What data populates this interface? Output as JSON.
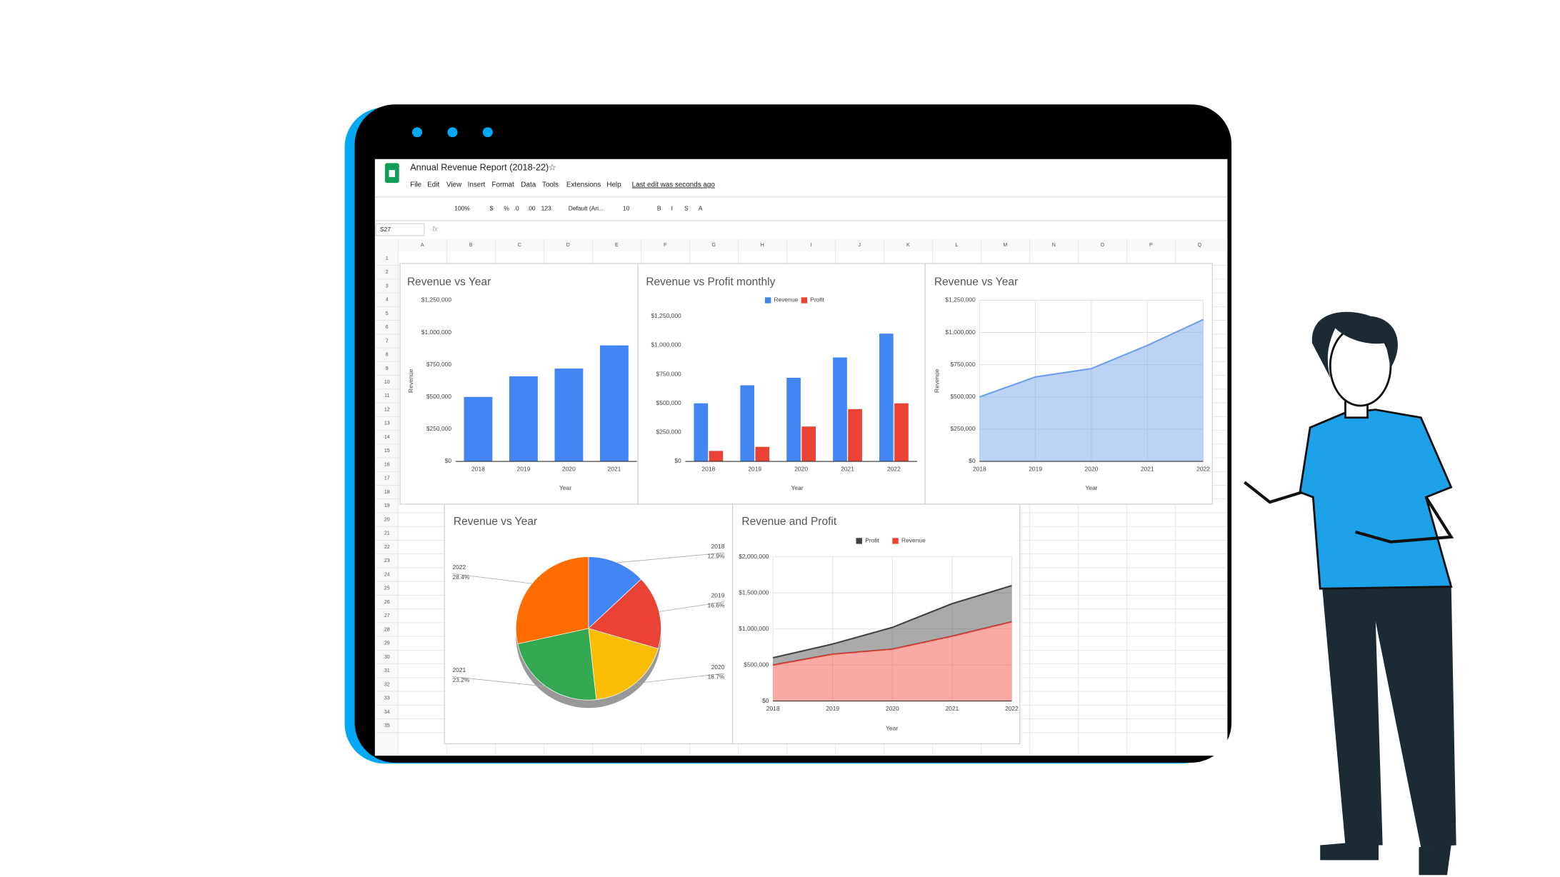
{
  "app": {
    "title": "Annual Revenue Report (2018-22)",
    "menus": [
      "File",
      "Edit",
      "View",
      "Insert",
      "Format",
      "Data",
      "Tools",
      "Extensions",
      "Help"
    ],
    "last_edit": "Last edit was seconds ago",
    "toolbar": [
      "100%",
      "$",
      "%",
      ".0",
      ".00",
      "123",
      "Default (Ari...",
      "10",
      "B",
      "I",
      "S",
      "A"
    ],
    "name_box": "S27",
    "formula_icon": "fx",
    "columns": [
      "A",
      "B",
      "C",
      "D",
      "E",
      "F",
      "G",
      "H",
      "I",
      "J",
      "K",
      "L",
      "M",
      "N",
      "O",
      "P",
      "Q"
    ],
    "rows": [
      1,
      2,
      3,
      4,
      5,
      6,
      7,
      8,
      9,
      10,
      11,
      12,
      13,
      14,
      15,
      16,
      17,
      18,
      19,
      20,
      21,
      22,
      23,
      24,
      25,
      26,
      27,
      28,
      29,
      30,
      31,
      32,
      33,
      34,
      35
    ]
  },
  "chart_data": [
    {
      "type": "bar",
      "title": "Revenue vs Year",
      "categories": [
        "2018",
        "2019",
        "2020",
        "2021"
      ],
      "values": [
        500000,
        660000,
        720000,
        900000
      ],
      "color": "#4285f4",
      "ylim": [
        0,
        1250000
      ],
      "yticks": [
        {
          "value": 0,
          "label": "$0"
        },
        {
          "value": 250000,
          "label": "$250,000"
        },
        {
          "value": 500000,
          "label": "$500,000"
        },
        {
          "value": 750000,
          "label": "$750,000"
        },
        {
          "value": 1000000,
          "label": "$1,000,000"
        },
        {
          "value": 1250000,
          "label": "$1,250,000"
        }
      ],
      "grid": false,
      "y_label": "Revenue",
      "x_label": "Year"
    },
    {
      "type": "bar",
      "title": "Revenue vs Profit monthly",
      "categories": [
        "2018",
        "2019",
        "2020",
        "2021",
        "2022"
      ],
      "series": [
        {
          "name": "Revenue",
          "color": "#4285f4",
          "values": [
            500000,
            655000,
            720000,
            895000,
            1100000
          ]
        },
        {
          "name": "Profit",
          "color": "#ea4335",
          "values": [
            90000,
            125000,
            300000,
            450000,
            500000
          ]
        }
      ],
      "ylim": [
        0,
        1250000
      ],
      "yticks": [
        {
          "value": 0,
          "label": "$0"
        },
        {
          "value": 250000,
          "label": "$250,000"
        },
        {
          "value": 500000,
          "label": "$500,000"
        },
        {
          "value": 750000,
          "label": "$750,000"
        },
        {
          "value": 1000000,
          "label": "$1,000,000"
        },
        {
          "value": 1250000,
          "label": "$1,250,000"
        }
      ],
      "grid": false,
      "x_label": "Year",
      "legend": "top"
    },
    {
      "type": "area",
      "title": "Revenue vs Year",
      "x": [
        2018,
        2019,
        2020,
        2021,
        2022
      ],
      "values": [
        500000,
        655000,
        720000,
        900000,
        1100000
      ],
      "color": "#6d9eeb",
      "xlim": [
        2018,
        2022
      ],
      "xticks": [
        2018,
        2019,
        2020,
        2021,
        2022
      ],
      "ylim": [
        0,
        1250000
      ],
      "yticks": [
        {
          "value": 0,
          "label": "$0"
        },
        {
          "value": 250000,
          "label": "$250,000"
        },
        {
          "value": 500000,
          "label": "$500,000"
        },
        {
          "value": 750000,
          "label": "$750,000"
        },
        {
          "value": 1000000,
          "label": "$1,000,000"
        },
        {
          "value": 1250000,
          "label": "$1,250,000"
        }
      ],
      "grid": true,
      "y_label": "Revenue",
      "x_label": "Year"
    },
    {
      "type": "pie",
      "title": "Revenue vs Year",
      "categories": [
        "2018",
        "2019",
        "2020",
        "2021",
        "2022"
      ],
      "values": [
        12.9,
        16.6,
        18.7,
        23.2,
        28.4
      ],
      "value_labels": [
        "12.9%",
        "16.6%",
        "18.7%",
        "23.2%",
        "28.4%"
      ],
      "colors": [
        "#4285f4",
        "#ea4335",
        "#fbbc04",
        "#34a853",
        "#ff6d01"
      ]
    },
    {
      "type": "area",
      "stacked": true,
      "title": "Revenue and Profit",
      "x": [
        2018,
        2019,
        2020,
        2021,
        2022
      ],
      "series": [
        {
          "name": "Profit",
          "color": "#424242",
          "values": [
            100000,
            140000,
            300000,
            450000,
            500000
          ]
        },
        {
          "name": "Revenue",
          "color": "#f44336",
          "values": [
            500000,
            650000,
            720000,
            900000,
            1100000
          ]
        }
      ],
      "xlim": [
        2018,
        2022
      ],
      "xticks": [
        2018,
        2019,
        2020,
        2021,
        2022
      ],
      "ylim": [
        0,
        2000000
      ],
      "yticks": [
        {
          "value": 0,
          "label": "$0"
        },
        {
          "value": 500000,
          "label": "$500,000"
        },
        {
          "value": 1000000,
          "label": "$1,000,000"
        },
        {
          "value": 1500000,
          "label": "$1,500,000"
        },
        {
          "value": 2000000,
          "label": "$2,000,000"
        }
      ],
      "grid": true,
      "x_label": "Year",
      "legend": "top"
    }
  ]
}
